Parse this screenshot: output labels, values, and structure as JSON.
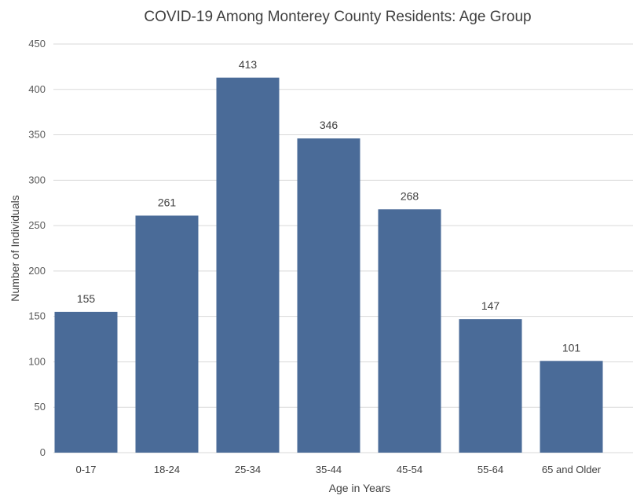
{
  "chart_data": {
    "type": "bar",
    "title": "COVID-19 Among Monterey County Residents: Age Group",
    "xlabel": "Age in Years",
    "ylabel": "Number of Individuals",
    "categories": [
      "0-17",
      "18-24",
      "25-34",
      "35-44",
      "45-54",
      "55-64",
      "65 and Older"
    ],
    "values": [
      155,
      261,
      413,
      346,
      268,
      147,
      101
    ],
    "ylim": [
      0,
      450
    ],
    "yticks": [
      0,
      50,
      100,
      150,
      200,
      250,
      300,
      350,
      400,
      450
    ],
    "grid": true,
    "legend": "none",
    "bar_color": "#4a6b98"
  }
}
